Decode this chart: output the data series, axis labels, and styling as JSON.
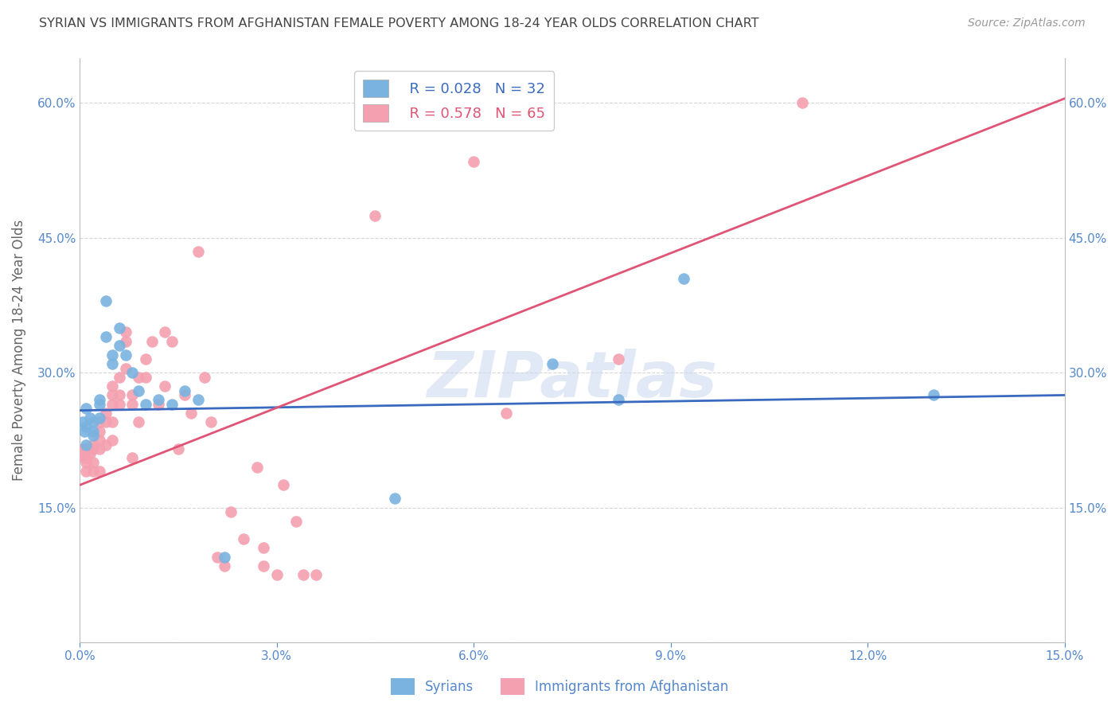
{
  "title": "SYRIAN VS IMMIGRANTS FROM AFGHANISTAN FEMALE POVERTY AMONG 18-24 YEAR OLDS CORRELATION CHART",
  "source": "Source: ZipAtlas.com",
  "ylabel": "Female Poverty Among 18-24 Year Olds",
  "xlim": [
    0.0,
    0.15
  ],
  "ylim": [
    0.0,
    0.65
  ],
  "xticks": [
    0.0,
    0.03,
    0.06,
    0.09,
    0.12,
    0.15
  ],
  "yticks_left": [
    0.0,
    0.15,
    0.3,
    0.45,
    0.6
  ],
  "yticks_right": [
    0.15,
    0.3,
    0.45,
    0.6
  ],
  "xticklabels": [
    "0.0%",
    "3.0%",
    "6.0%",
    "9.0%",
    "12.0%",
    "15.0%"
  ],
  "yticklabels_left": [
    "",
    "15.0%",
    "30.0%",
    "45.0%",
    "60.0%"
  ],
  "yticklabels_right": [
    "15.0%",
    "30.0%",
    "45.0%",
    "60.0%"
  ],
  "blue_color": "#7ab3e0",
  "pink_color": "#f4a0b0",
  "blue_line_color": "#3a6abf",
  "pink_line_color": "#e05575",
  "title_color": "#444444",
  "axis_color": "#bbbbbb",
  "tick_color": "#5588cc",
  "grid_color": "#cccccc",
  "legend_R_blue": "R = 0.028",
  "legend_N_blue": "N = 32",
  "legend_R_pink": "R = 0.578",
  "legend_N_pink": "N = 65",
  "watermark": "ZIPatlas",
  "syrians_label": "Syrians",
  "afghan_label": "Immigrants from Afghanistan",
  "syrians_x": [
    0.0005,
    0.0007,
    0.001,
    0.001,
    0.001,
    0.0015,
    0.002,
    0.002,
    0.002,
    0.003,
    0.003,
    0.003,
    0.004,
    0.004,
    0.005,
    0.005,
    0.006,
    0.006,
    0.007,
    0.008,
    0.009,
    0.01,
    0.012,
    0.014,
    0.016,
    0.018,
    0.022,
    0.048,
    0.072,
    0.082,
    0.092,
    0.13
  ],
  "syrians_y": [
    0.245,
    0.235,
    0.26,
    0.24,
    0.22,
    0.25,
    0.245,
    0.235,
    0.23,
    0.27,
    0.265,
    0.25,
    0.38,
    0.34,
    0.32,
    0.31,
    0.35,
    0.33,
    0.32,
    0.3,
    0.28,
    0.265,
    0.27,
    0.265,
    0.28,
    0.27,
    0.095,
    0.16,
    0.31,
    0.27,
    0.405,
    0.275
  ],
  "afghan_x": [
    0.0005,
    0.0007,
    0.001,
    0.001,
    0.001,
    0.001,
    0.0015,
    0.002,
    0.002,
    0.002,
    0.002,
    0.003,
    0.003,
    0.003,
    0.003,
    0.003,
    0.004,
    0.004,
    0.004,
    0.005,
    0.005,
    0.005,
    0.005,
    0.005,
    0.006,
    0.006,
    0.006,
    0.007,
    0.007,
    0.007,
    0.008,
    0.008,
    0.008,
    0.009,
    0.009,
    0.01,
    0.01,
    0.011,
    0.012,
    0.013,
    0.013,
    0.014,
    0.015,
    0.016,
    0.017,
    0.018,
    0.019,
    0.02,
    0.021,
    0.022,
    0.023,
    0.025,
    0.027,
    0.028,
    0.028,
    0.03,
    0.031,
    0.033,
    0.034,
    0.036,
    0.045,
    0.06,
    0.065,
    0.082,
    0.11
  ],
  "afghan_y": [
    0.215,
    0.205,
    0.215,
    0.205,
    0.2,
    0.19,
    0.21,
    0.215,
    0.22,
    0.2,
    0.19,
    0.245,
    0.235,
    0.225,
    0.215,
    0.19,
    0.255,
    0.245,
    0.22,
    0.285,
    0.275,
    0.265,
    0.245,
    0.225,
    0.295,
    0.275,
    0.265,
    0.345,
    0.335,
    0.305,
    0.275,
    0.265,
    0.205,
    0.295,
    0.245,
    0.315,
    0.295,
    0.335,
    0.265,
    0.345,
    0.285,
    0.335,
    0.215,
    0.275,
    0.255,
    0.435,
    0.295,
    0.245,
    0.095,
    0.085,
    0.145,
    0.115,
    0.195,
    0.105,
    0.085,
    0.075,
    0.175,
    0.135,
    0.075,
    0.075,
    0.475,
    0.535,
    0.255,
    0.315,
    0.6
  ],
  "blue_line_x": [
    0.0,
    0.15
  ],
  "blue_line_y": [
    0.258,
    0.275
  ],
  "pink_line_x": [
    0.0,
    0.15
  ],
  "pink_line_y": [
    0.175,
    0.605
  ]
}
